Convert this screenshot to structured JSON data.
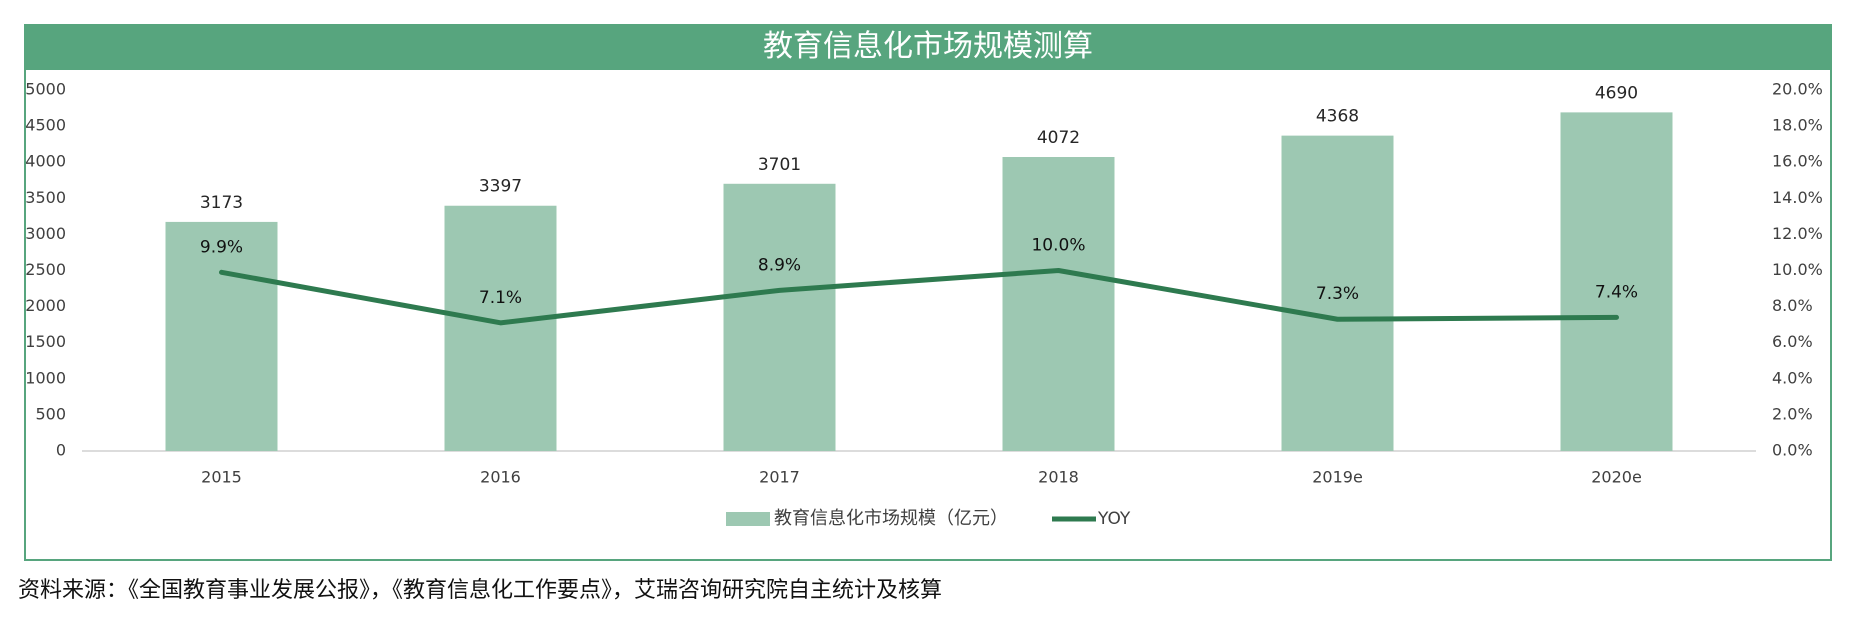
{
  "chart_data": {
    "type": "bar+line",
    "title": "教育信息化市场规模测算",
    "categories": [
      "2015",
      "2016",
      "2017",
      "2018",
      "2019e",
      "2020e"
    ],
    "series": [
      {
        "name": "教育信息化市场规模（亿元）",
        "type": "bar",
        "axis": "left",
        "values": [
          3173,
          3397,
          3701,
          4072,
          4368,
          4690
        ],
        "labels": [
          "3173",
          "3397",
          "3701",
          "4072",
          "4368",
          "4690"
        ],
        "color": "#9dc8b2"
      },
      {
        "name": "YOY",
        "type": "line",
        "axis": "right",
        "values": [
          9.9,
          7.1,
          8.9,
          10.0,
          7.3,
          7.4
        ],
        "labels": [
          "9.9%",
          "7.1%",
          "8.9%",
          "10.0%",
          "7.3%",
          "7.4%"
        ],
        "color": "#2e7a4f"
      }
    ],
    "left_axis": {
      "range": [
        0,
        5000
      ],
      "ticks": [
        "0",
        "500",
        "1000",
        "1500",
        "2000",
        "2500",
        "3000",
        "3500",
        "4000",
        "4500",
        "5000"
      ]
    },
    "right_axis": {
      "range": [
        0,
        20
      ],
      "ticks": [
        "0.0%",
        "2.0%",
        "4.0%",
        "6.0%",
        "8.0%",
        "10.0%",
        "12.0%",
        "14.0%",
        "16.0%",
        "18.0%",
        "20.0%"
      ]
    },
    "grid": false,
    "legend": "bottom-center"
  },
  "source_note": "资料来源：《全国教育事业发展公报》，《教育信息化工作要点》，艾瑞咨询研究院自主统计及核算"
}
